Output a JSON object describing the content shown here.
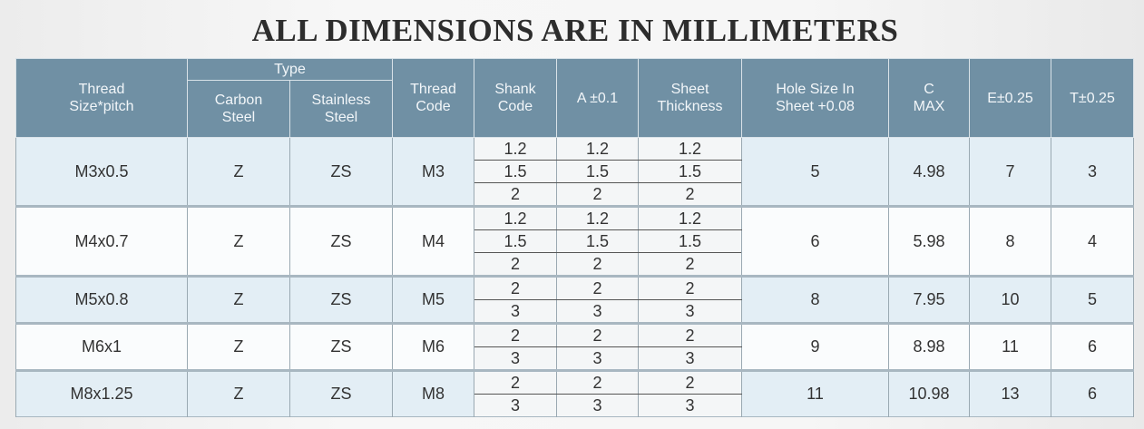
{
  "title": "ALL DIMENSIONS ARE IN MILLIMETERS",
  "headers": {
    "thread_size_1": "Thread",
    "thread_size_2": "Size*pitch",
    "type": "Type",
    "carbon_1": "Carbon",
    "carbon_2": "Steel",
    "stainless_1": "Stainless",
    "stainless_2": "Steel",
    "thread_code_1": "Thread",
    "thread_code_2": "Code",
    "shank_1": "Shank",
    "shank_2": "Code",
    "a": "A ±0.1",
    "sheet_1": "Sheet",
    "sheet_2": "Thickness",
    "hole_1": "Hole Size In",
    "hole_2": "Sheet +0.08",
    "c_1": "C",
    "c_2": "MAX",
    "e": "E±0.25",
    "t": "T±0.25"
  },
  "rows": [
    {
      "thread_size": "M3x0.5",
      "carbon": "Z",
      "stainless": "ZS",
      "thread_code": "M3",
      "sub": [
        {
          "shank": "1.2",
          "a": "1.2",
          "sheet": "1.2"
        },
        {
          "shank": "1.5",
          "a": "1.5",
          "sheet": "1.5"
        },
        {
          "shank": "2",
          "a": "2",
          "sheet": "2"
        }
      ],
      "hole": "5",
      "c": "4.98",
      "e": "7",
      "t": "3"
    },
    {
      "thread_size": "M4x0.7",
      "carbon": "Z",
      "stainless": "ZS",
      "thread_code": "M4",
      "sub": [
        {
          "shank": "1.2",
          "a": "1.2",
          "sheet": "1.2"
        },
        {
          "shank": "1.5",
          "a": "1.5",
          "sheet": "1.5"
        },
        {
          "shank": "2",
          "a": "2",
          "sheet": "2"
        }
      ],
      "hole": "6",
      "c": "5.98",
      "e": "8",
      "t": "4"
    },
    {
      "thread_size": "M5x0.8",
      "carbon": "Z",
      "stainless": "ZS",
      "thread_code": "M5",
      "sub": [
        {
          "shank": "2",
          "a": "2",
          "sheet": "2"
        },
        {
          "shank": "3",
          "a": "3",
          "sheet": "3"
        }
      ],
      "hole": "8",
      "c": "7.95",
      "e": "10",
      "t": "5"
    },
    {
      "thread_size": "M6x1",
      "carbon": "Z",
      "stainless": "ZS",
      "thread_code": "M6",
      "sub": [
        {
          "shank": "2",
          "a": "2",
          "sheet": "2"
        },
        {
          "shank": "3",
          "a": "3",
          "sheet": "3"
        }
      ],
      "hole": "9",
      "c": "8.98",
      "e": "11",
      "t": "6"
    },
    {
      "thread_size": "M8x1.25",
      "carbon": "Z",
      "stainless": "ZS",
      "thread_code": "M8",
      "sub": [
        {
          "shank": "2",
          "a": "2",
          "sheet": "2"
        },
        {
          "shank": "3",
          "a": "3",
          "sheet": "3"
        }
      ],
      "hole": "11",
      "c": "10.98",
      "e": "13",
      "t": "6"
    }
  ]
}
